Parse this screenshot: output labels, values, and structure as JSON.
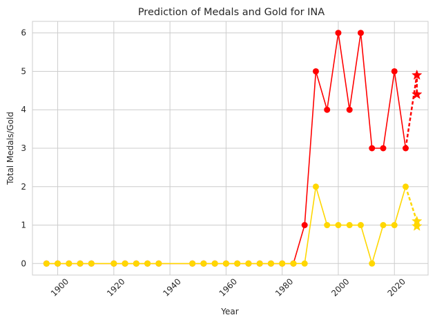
{
  "chart_data": {
    "type": "line",
    "title": "Prediction of Medals and Gold for INA",
    "xlabel": "Year",
    "ylabel": "Total Medals/Gold",
    "xlim": [
      1891,
      2032
    ],
    "ylim": [
      -0.3,
      6.3
    ],
    "xticks": [
      1900,
      1920,
      1940,
      1960,
      1980,
      2000,
      2020
    ],
    "yticks": [
      0,
      1,
      2,
      3,
      4,
      5,
      6
    ],
    "grid": true,
    "series": [
      {
        "color": "#ff0000",
        "style": "solid",
        "marker": "circle",
        "x": [
          1896,
          1900,
          1904,
          1908,
          1912,
          1920,
          1924,
          1928,
          1932,
          1936,
          1948,
          1952,
          1956,
          1960,
          1964,
          1968,
          1972,
          1976,
          1980,
          1984,
          1988,
          1992,
          1996,
          2000,
          2004,
          2008,
          2012,
          2016,
          2020,
          2024
        ],
        "y": [
          0,
          0,
          0,
          0,
          0,
          0,
          0,
          0,
          0,
          0,
          0,
          0,
          0,
          0,
          0,
          0,
          0,
          0,
          0,
          0,
          1,
          5,
          4,
          6,
          4,
          6,
          3,
          3,
          5,
          3
        ]
      },
      {
        "color": "#ffd700",
        "style": "solid",
        "marker": "circle",
        "x": [
          1896,
          1900,
          1904,
          1908,
          1912,
          1920,
          1924,
          1928,
          1932,
          1936,
          1948,
          1952,
          1956,
          1960,
          1964,
          1968,
          1972,
          1976,
          1980,
          1984,
          1988,
          1992,
          1996,
          2000,
          2004,
          2008,
          2012,
          2016,
          2020,
          2024
        ],
        "y": [
          0,
          0,
          0,
          0,
          0,
          0,
          0,
          0,
          0,
          0,
          0,
          0,
          0,
          0,
          0,
          0,
          0,
          0,
          0,
          0,
          0,
          2,
          1,
          1,
          1,
          1,
          0,
          1,
          1,
          2
        ]
      },
      {
        "color": "#ff0000",
        "style": "dashed",
        "marker": "star",
        "x": [
          2024,
          2028,
          2028
        ],
        "y": [
          3,
          4.9,
          4.4
        ]
      },
      {
        "color": "#ffd700",
        "style": "dashed",
        "marker": "star",
        "x": [
          2024,
          2028,
          2028
        ],
        "y": [
          2,
          1.1,
          0.97
        ]
      }
    ]
  }
}
